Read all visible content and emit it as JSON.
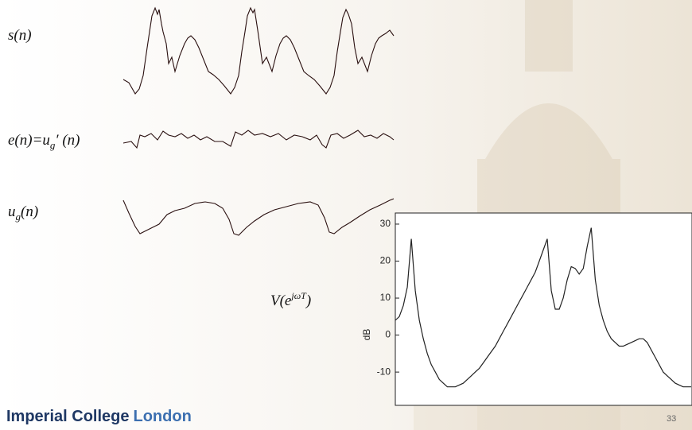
{
  "labels": {
    "s": "s(n)",
    "e_main": "e(n)=u",
    "e_sub": "g",
    "e_tail": "′ (n)",
    "ug_main": "u",
    "ug_sub": "g",
    "ug_tail": "(n)",
    "v_main": "V(e",
    "v_sup": "jωT",
    "v_tail": ")"
  },
  "footer": {
    "brand_main": "Imperial College",
    "brand_city": "London",
    "page": "33"
  },
  "chart_data": {
    "type": "line",
    "ylabel": "dB",
    "ylim": [
      -19,
      33
    ],
    "yticks": [
      30,
      20,
      10,
      0,
      -10
    ],
    "color": "#222222",
    "values": [
      4,
      5,
      8,
      13,
      26,
      12,
      4,
      -1,
      -5,
      -8,
      -10,
      -12,
      -13,
      -14,
      -14,
      -14,
      -13.5,
      -13,
      -12,
      -11,
      -10,
      -9,
      -7.5,
      -6,
      -4.5,
      -3,
      -1,
      1,
      3,
      5,
      7,
      9,
      11,
      13,
      15,
      17,
      20,
      23,
      26,
      12,
      7,
      7,
      10,
      15,
      18.5,
      18,
      16.5,
      18,
      24,
      29,
      15,
      8,
      4,
      1,
      -1,
      -2,
      -3,
      -3,
      -2.5,
      -2,
      -1.5,
      -1,
      -1,
      -2,
      -4,
      -6,
      -8,
      -10,
      -11,
      -12,
      -13,
      -13.5,
      -14,
      -14,
      -14
    ]
  }
}
